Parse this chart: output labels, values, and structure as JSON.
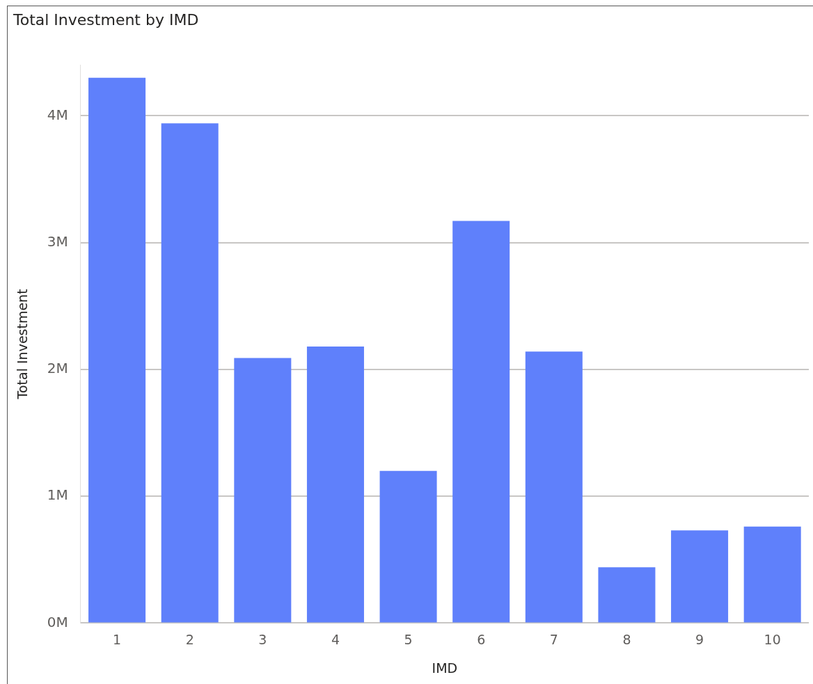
{
  "chart_data": {
    "type": "bar",
    "title": "Total Investment by IMD",
    "xlabel": "IMD",
    "ylabel": "Total Investment",
    "categories": [
      "1",
      "2",
      "3",
      "4",
      "5",
      "6",
      "7",
      "8",
      "9",
      "10"
    ],
    "values": [
      4300000,
      3940000,
      2090000,
      2180000,
      1200000,
      3170000,
      2140000,
      440000,
      730000,
      760000
    ],
    "color": "#5f80fb",
    "ylim": [
      0,
      4400000
    ],
    "yticks": [
      {
        "value": 0,
        "label": "0M"
      },
      {
        "value": 1000000,
        "label": "1M"
      },
      {
        "value": 2000000,
        "label": "2M"
      },
      {
        "value": 3000000,
        "label": "3M"
      },
      {
        "value": 4000000,
        "label": "4M"
      }
    ],
    "grid": "y",
    "legend": false
  }
}
